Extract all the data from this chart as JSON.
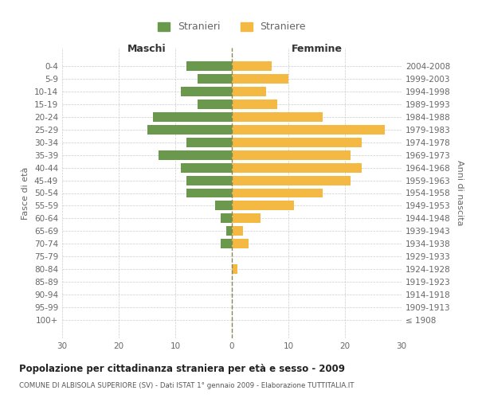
{
  "age_groups": [
    "0-4",
    "5-9",
    "10-14",
    "15-19",
    "20-24",
    "25-29",
    "30-34",
    "35-39",
    "40-44",
    "45-49",
    "50-54",
    "55-59",
    "60-64",
    "65-69",
    "70-74",
    "75-79",
    "80-84",
    "85-89",
    "90-94",
    "95-99",
    "100+"
  ],
  "birth_years": [
    "2004-2008",
    "1999-2003",
    "1994-1998",
    "1989-1993",
    "1984-1988",
    "1979-1983",
    "1974-1978",
    "1969-1973",
    "1964-1968",
    "1959-1963",
    "1954-1958",
    "1949-1953",
    "1944-1948",
    "1939-1943",
    "1934-1938",
    "1929-1933",
    "1924-1928",
    "1919-1923",
    "1914-1918",
    "1909-1913",
    "≤ 1908"
  ],
  "maschi": [
    8,
    6,
    9,
    6,
    14,
    15,
    8,
    13,
    9,
    8,
    8,
    3,
    2,
    1,
    2,
    0,
    0,
    0,
    0,
    0,
    0
  ],
  "femmine": [
    7,
    10,
    6,
    8,
    16,
    27,
    23,
    21,
    23,
    21,
    16,
    11,
    5,
    2,
    3,
    0,
    1,
    0,
    0,
    0,
    0
  ],
  "male_color": "#6a994e",
  "female_color": "#f4b942",
  "xlim": 30,
  "title": "Popolazione per cittadinanza straniera per età e sesso - 2009",
  "subtitle": "COMUNE DI ALBISOLA SUPERIORE (SV) - Dati ISTAT 1° gennaio 2009 - Elaborazione TUTTITALIA.IT",
  "xlabel_left": "Maschi",
  "xlabel_right": "Femmine",
  "ylabel_left": "Fasce di età",
  "ylabel_right": "Anni di nascita",
  "legend_male": "Stranieri",
  "legend_female": "Straniere",
  "bg_color": "#ffffff",
  "grid_color": "#cccccc",
  "tick_color": "#666666"
}
